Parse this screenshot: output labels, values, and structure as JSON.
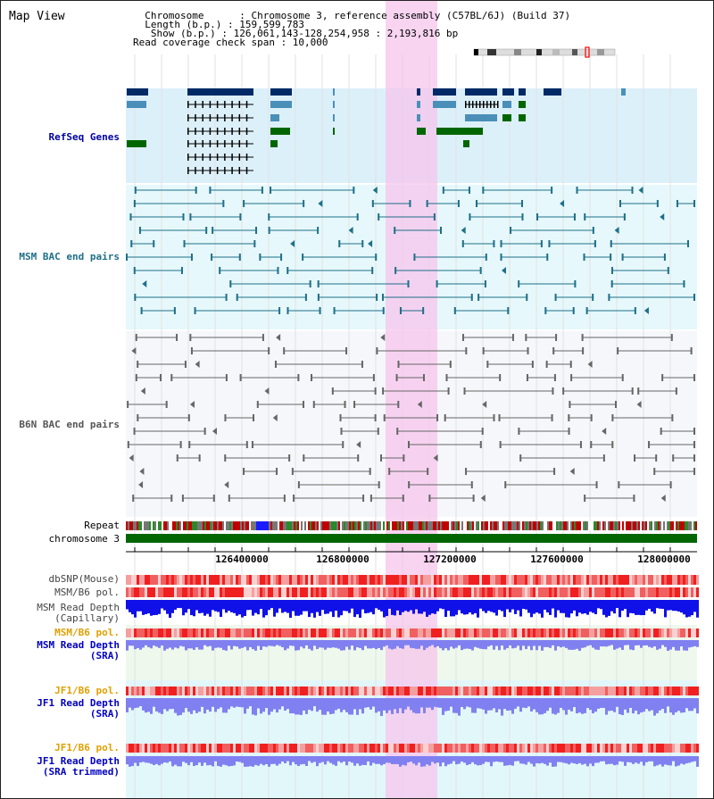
{
  "header": {
    "title": "Map View",
    "info_lines": [
      "  Chromosome      : Chromosome 3, reference assembly (C57BL/6J) (Build 37)",
      "  Length (b.p.) : 159,599,783",
      "   Show (b.p.) : 126,061,143-128,254,958 : 2,193,816 bp",
      "Read coverage check span : 10,000"
    ]
  },
  "tracks": {
    "refseq": "RefSeq Genes",
    "msm_bac": "MSM BAC end pairs",
    "b6n_bac": "B6N BAC end pairs",
    "repeat": "Repeat",
    "chromosome": "chromosome 3",
    "dbsnp": "dbSNP(Mouse)",
    "msm_b6_pol_1": "MSM/B6 pol.",
    "msm_depth_cap_1": "MSM Read Depth",
    "msm_depth_cap_2": "(Capillary)",
    "msm_b6_pol_2": "MSM/B6 pol.",
    "msm_depth_sra_1": "MSM Read Depth",
    "msm_depth_sra_2": "(SRA)",
    "jf1_b6_pol_1": "JF1/B6 pol.",
    "jf1_depth_sra_1": "JF1 Read Depth",
    "jf1_depth_sra_2": "(SRA)",
    "jf1_b6_pol_2": "JF1/B6 pol.",
    "jf1_depth_trim_1": "JF1 Read Depth",
    "jf1_depth_trim_2": "(SRA trimmed)"
  },
  "axis": {
    "ticks": [
      "126400000",
      "126800000",
      "127200000",
      "127600000",
      "128000000"
    ]
  },
  "colors": {
    "gene_dark": "#002a66",
    "gene_light": "#4a8fb8",
    "gene_green": "#006600",
    "msm_bac": "#1f6f88",
    "b6n_bac": "#666666",
    "highlight": "#f6c6ec",
    "depth_blue": "#1010e8",
    "depth_light": "#8080f0",
    "pol_red": "#f04040"
  }
}
